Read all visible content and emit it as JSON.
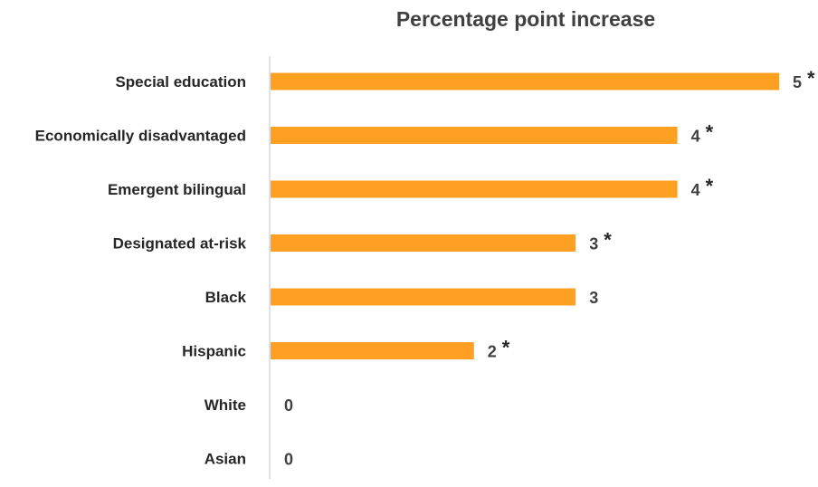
{
  "chart_data": {
    "type": "bar",
    "orientation": "horizontal",
    "title": "Percentage point increase",
    "xlabel": "",
    "ylabel": "",
    "categories": [
      "Special education",
      "Economically disadvantaged",
      "Emergent bilingual",
      "Designated at-risk",
      "Black",
      "Hispanic",
      "White",
      "Asian"
    ],
    "values": [
      5,
      4,
      4,
      3,
      3,
      2,
      0,
      0
    ],
    "value_labels": [
      "5",
      "4",
      "4",
      "3",
      "3",
      "2",
      "0",
      "0"
    ],
    "significance_markers": [
      "*",
      "*",
      "*",
      "*",
      "",
      "*",
      "",
      ""
    ],
    "xlim": [
      0,
      5
    ],
    "grid": false,
    "legend": "none",
    "bar_color": "#FFA023",
    "axis_color": "#D9D9D9"
  }
}
